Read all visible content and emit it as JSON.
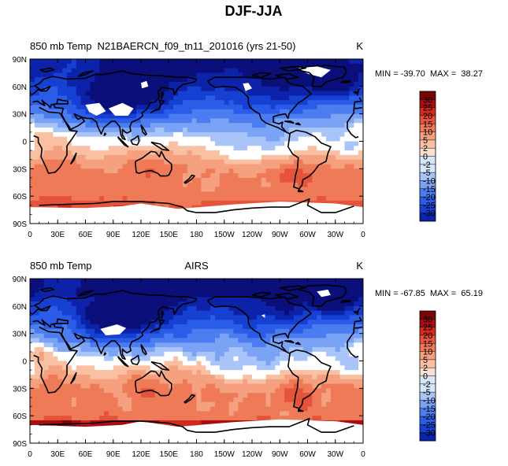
{
  "figure_title": "DJF-JJA",
  "colors": {
    "scale": [
      "#0a0f7a",
      "#0c22a8",
      "#1640d2",
      "#2a5ce8",
      "#4b7cf0",
      "#7aa2f5",
      "#a8c4f8",
      "#d6e6fb",
      "#ffffff",
      "#fbe0d2",
      "#f9c0a4",
      "#f5a07e",
      "#ef7a58",
      "#e5543a",
      "#d12a20",
      "#a80d12",
      "#780508"
    ],
    "land_contour": "#000000"
  },
  "chart_data": [
    {
      "type": "heatmap",
      "panel": "top",
      "title_left": "850 mb Temp",
      "title_center": "N21BAERCN_f09_tn11_201016 (yrs 21-50)",
      "title_right": "K",
      "min_label": "MIN = -39.70",
      "max_label": "MAX =  38.27",
      "min": -39.7,
      "max": 38.27,
      "xticks": [
        "0",
        "30E",
        "60E",
        "90E",
        "120E",
        "150E",
        "180",
        "150W",
        "120W",
        "90W",
        "60W",
        "30W",
        "0"
      ],
      "yticks": [
        "90N",
        "60N",
        "30N",
        "0",
        "30S",
        "60S",
        "90S"
      ],
      "xlim": [
        0,
        360
      ],
      "ylim": [
        -90,
        90
      ],
      "colorbar_levels": [
        "30",
        "25",
        "20",
        "15",
        "10",
        "5",
        "2",
        "0",
        "-2",
        "-5",
        "-10",
        "-15",
        "-20",
        "-25",
        "-30"
      ]
    },
    {
      "type": "heatmap",
      "panel": "bottom",
      "title_left": "850 mb Temp",
      "title_center": "AIRS",
      "title_right": "K",
      "min_label": "MIN = -67.85",
      "max_label": "MAX =  65.19",
      "min": -67.85,
      "max": 65.19,
      "xticks": [
        "0",
        "30E",
        "60E",
        "90E",
        "120E",
        "150E",
        "180",
        "150W",
        "120W",
        "90W",
        "60W",
        "30W",
        "0"
      ],
      "yticks": [
        "90N",
        "60N",
        "30N",
        "0",
        "30S",
        "60S",
        "90S"
      ],
      "xlim": [
        0,
        360
      ],
      "ylim": [
        -90,
        90
      ],
      "colorbar_levels": [
        "30",
        "25",
        "20",
        "15",
        "10",
        "5",
        "2",
        "0",
        "-2",
        "-5",
        "-10",
        "-15",
        "-20",
        "-25",
        "-30"
      ]
    }
  ]
}
